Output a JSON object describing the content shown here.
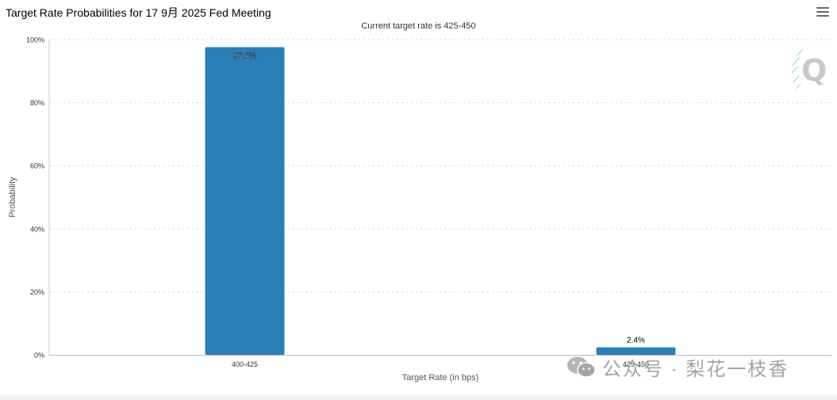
{
  "header": {
    "title": "Target Rate Probabilities for 17 9月 2025 Fed Meeting",
    "menu_icon": "hamburger-menu-icon"
  },
  "chart_data": {
    "type": "bar",
    "title": "Target Rate Probabilities for 17 9月 2025 Fed Meeting",
    "subtitle": "Current target rate is 425-450",
    "categories": [
      "400-425",
      "425-450"
    ],
    "values": [
      97.6,
      2.4
    ],
    "value_labels": [
      "97.6%",
      "2.4%"
    ],
    "xlabel": "Target Rate (in bps)",
    "ylabel": "Probability",
    "ylim": [
      0,
      100
    ],
    "yticks": [
      "0%",
      "20%",
      "40%",
      "60%",
      "80%",
      "100%"
    ],
    "grid": true,
    "bar_color": "#2980b9"
  },
  "watermark": {
    "logo_icon": "q-logo-icon",
    "wechat_icon": "wechat-icon",
    "text": "公众号 · 梨花一枝香"
  }
}
